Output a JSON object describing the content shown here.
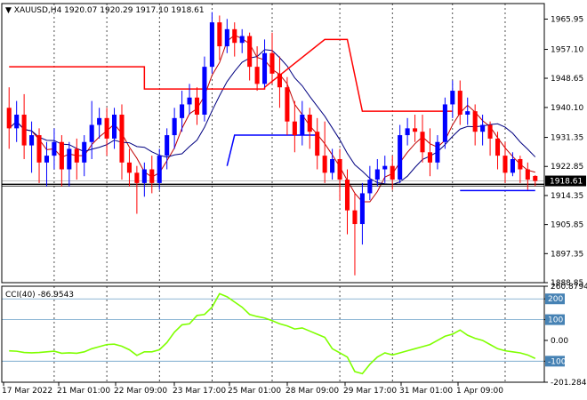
{
  "chart_data": [
    {
      "type": "candlestick",
      "symbol_label": "XAUUSD,H4",
      "ohlc_label": "1920.07 1920.29 1917.10 1918.61",
      "price_axis": {
        "range": [
          1888.85,
          1970.5
        ],
        "ticks": [
          "1965.95",
          "1957.10",
          "1948.65",
          "1940.10",
          "1931.35",
          "1922.85",
          "1914.35",
          "1905.85",
          "1897.35",
          "1888.85"
        ]
      },
      "current_price": {
        "label": "1918.61",
        "value": 1918.61
      },
      "time_axis": {
        "ticks": [
          "17 Mar 2022",
          "21 Mar 01:00",
          "22 Mar 09:00",
          "23 Mar 17:00",
          "25 Mar 01:00",
          "28 Mar 09:00",
          "29 Mar 17:00",
          "31 Mar 01:00",
          "1 Apr 09:00"
        ]
      },
      "candles": [
        {
          "o": 1940,
          "h": 1946,
          "c": 1934,
          "l": 1928
        },
        {
          "o": 1934,
          "h": 1942,
          "c": 1938,
          "l": 1930
        },
        {
          "o": 1938,
          "h": 1944,
          "c": 1929,
          "l": 1925
        },
        {
          "o": 1929,
          "h": 1936,
          "c": 1932,
          "l": 1921
        },
        {
          "o": 1932,
          "h": 1934,
          "c": 1924,
          "l": 1918
        },
        {
          "o": 1924,
          "h": 1930,
          "c": 1926,
          "l": 1917
        },
        {
          "o": 1926,
          "h": 1934,
          "c": 1930,
          "l": 1922
        },
        {
          "o": 1930,
          "h": 1932,
          "c": 1922,
          "l": 1917
        },
        {
          "o": 1922,
          "h": 1930,
          "c": 1928,
          "l": 1917
        },
        {
          "o": 1928,
          "h": 1931,
          "c": 1924,
          "l": 1919
        },
        {
          "o": 1924,
          "h": 1932,
          "c": 1930,
          "l": 1920
        },
        {
          "o": 1930,
          "h": 1942,
          "c": 1935,
          "l": 1925
        },
        {
          "o": 1935,
          "h": 1940,
          "c": 1937,
          "l": 1931
        },
        {
          "o": 1937,
          "h": 1940,
          "c": 1931,
          "l": 1926
        },
        {
          "o": 1931,
          "h": 1940,
          "c": 1938,
          "l": 1928
        },
        {
          "o": 1938,
          "h": 1941,
          "c": 1924,
          "l": 1919
        },
        {
          "o": 1924,
          "h": 1928,
          "c": 1921,
          "l": 1917
        },
        {
          "o": 1921,
          "h": 1923,
          "c": 1918,
          "l": 1909
        },
        {
          "o": 1918,
          "h": 1924,
          "c": 1922,
          "l": 1914
        },
        {
          "o": 1922,
          "h": 1926,
          "c": 1918,
          "l": 1915
        },
        {
          "o": 1918,
          "h": 1928,
          "c": 1926,
          "l": 1916
        },
        {
          "o": 1926,
          "h": 1934,
          "c": 1932,
          "l": 1922
        },
        {
          "o": 1932,
          "h": 1940,
          "c": 1937,
          "l": 1928
        },
        {
          "o": 1937,
          "h": 1945,
          "c": 1941,
          "l": 1933
        },
        {
          "o": 1941,
          "h": 1947,
          "c": 1943,
          "l": 1938
        },
        {
          "o": 1943,
          "h": 1946,
          "c": 1938,
          "l": 1935
        },
        {
          "o": 1938,
          "h": 1955,
          "c": 1952,
          "l": 1936
        },
        {
          "o": 1952,
          "h": 1968,
          "c": 1965,
          "l": 1950
        },
        {
          "o": 1965,
          "h": 1967,
          "c": 1958,
          "l": 1954
        },
        {
          "o": 1958,
          "h": 1966,
          "c": 1963,
          "l": 1956
        },
        {
          "o": 1963,
          "h": 1965,
          "c": 1959,
          "l": 1955
        },
        {
          "o": 1959,
          "h": 1963,
          "c": 1961,
          "l": 1956
        },
        {
          "o": 1961,
          "h": 1962,
          "c": 1952,
          "l": 1948
        },
        {
          "o": 1952,
          "h": 1958,
          "c": 1947,
          "l": 1945
        },
        {
          "o": 1947,
          "h": 1960,
          "c": 1956,
          "l": 1946
        },
        {
          "o": 1956,
          "h": 1962,
          "c": 1950,
          "l": 1947
        },
        {
          "o": 1950,
          "h": 1955,
          "c": 1946,
          "l": 1940
        },
        {
          "o": 1946,
          "h": 1949,
          "c": 1936,
          "l": 1932
        },
        {
          "o": 1936,
          "h": 1942,
          "c": 1932,
          "l": 1927
        },
        {
          "o": 1932,
          "h": 1942,
          "c": 1938,
          "l": 1929
        },
        {
          "o": 1938,
          "h": 1940,
          "c": 1933,
          "l": 1928
        },
        {
          "o": 1933,
          "h": 1937,
          "c": 1926,
          "l": 1922
        },
        {
          "o": 1926,
          "h": 1936,
          "c": 1921,
          "l": 1918
        },
        {
          "o": 1921,
          "h": 1928,
          "c": 1925,
          "l": 1919
        },
        {
          "o": 1925,
          "h": 1928,
          "c": 1919,
          "l": 1913
        },
        {
          "o": 1919,
          "h": 1922,
          "c": 1910,
          "l": 1903
        },
        {
          "o": 1910,
          "h": 1915,
          "c": 1906,
          "l": 1891
        },
        {
          "o": 1906,
          "h": 1918,
          "c": 1915,
          "l": 1900
        },
        {
          "o": 1915,
          "h": 1923,
          "c": 1919,
          "l": 1913
        },
        {
          "o": 1919,
          "h": 1925,
          "c": 1922,
          "l": 1917
        },
        {
          "o": 1922,
          "h": 1926,
          "c": 1923,
          "l": 1918
        },
        {
          "o": 1923,
          "h": 1926,
          "c": 1919,
          "l": 1916
        },
        {
          "o": 1919,
          "h": 1935,
          "c": 1932,
          "l": 1918
        },
        {
          "o": 1932,
          "h": 1937,
          "c": 1934,
          "l": 1929
        },
        {
          "o": 1934,
          "h": 1938,
          "c": 1933,
          "l": 1930
        },
        {
          "o": 1933,
          "h": 1938,
          "c": 1927,
          "l": 1924
        },
        {
          "o": 1927,
          "h": 1934,
          "c": 1924,
          "l": 1920
        },
        {
          "o": 1924,
          "h": 1932,
          "c": 1930,
          "l": 1922
        },
        {
          "o": 1930,
          "h": 1943,
          "c": 1941,
          "l": 1928
        },
        {
          "o": 1941,
          "h": 1948,
          "c": 1945,
          "l": 1937
        },
        {
          "o": 1945,
          "h": 1948,
          "c": 1938,
          "l": 1935
        },
        {
          "o": 1938,
          "h": 1943,
          "c": 1939,
          "l": 1935
        },
        {
          "o": 1939,
          "h": 1941,
          "c": 1933,
          "l": 1929
        },
        {
          "o": 1933,
          "h": 1938,
          "c": 1935,
          "l": 1929
        },
        {
          "o": 1935,
          "h": 1936,
          "c": 1931,
          "l": 1926
        },
        {
          "o": 1931,
          "h": 1933,
          "c": 1926,
          "l": 1922
        },
        {
          "o": 1926,
          "h": 1930,
          "c": 1921,
          "l": 1918
        },
        {
          "o": 1921,
          "h": 1927,
          "c": 1925,
          "l": 1920
        },
        {
          "o": 1925,
          "h": 1926,
          "c": 1922,
          "l": 1918
        },
        {
          "o": 1922,
          "h": 1924,
          "c": 1919,
          "l": 1916
        },
        {
          "o": 1920.07,
          "h": 1920.29,
          "c": 1918.61,
          "l": 1917.1
        }
      ],
      "overlays": {
        "slow_ma_color": "#000080",
        "fast_ma_color": "#c00000",
        "resistance_color": "#ff0000",
        "support_color": "#0000ff",
        "horizontal_line_color": "#000000",
        "horizontal_line_value": 1917.6
      }
    },
    {
      "type": "line",
      "indicator_label": "CCI(40) -86.9543",
      "axis": {
        "range": [
          -201.2846,
          260.8794
        ],
        "ticks": [
          "260.8794",
          "200",
          "100",
          "0.00",
          "-100",
          "-201.2846"
        ]
      },
      "levels": [
        200,
        100,
        -100
      ],
      "color": "#7fff00",
      "values": [
        -50,
        -52,
        -58,
        -60,
        -58,
        -55,
        -52,
        -62,
        -60,
        -62,
        -55,
        -40,
        -30,
        -20,
        -18,
        -28,
        -45,
        -72,
        -55,
        -55,
        -45,
        -10,
        40,
        75,
        80,
        120,
        125,
        160,
        225,
        210,
        185,
        160,
        125,
        115,
        108,
        95,
        80,
        70,
        55,
        60,
        45,
        30,
        15,
        -40,
        -60,
        -80,
        -150,
        -160,
        -115,
        -80,
        -60,
        -70,
        -60,
        -50,
        -40,
        -30,
        -20,
        0,
        20,
        30,
        50,
        25,
        10,
        0,
        -20,
        -40,
        -50,
        -55,
        -60,
        -70,
        -86.9543
      ]
    }
  ]
}
